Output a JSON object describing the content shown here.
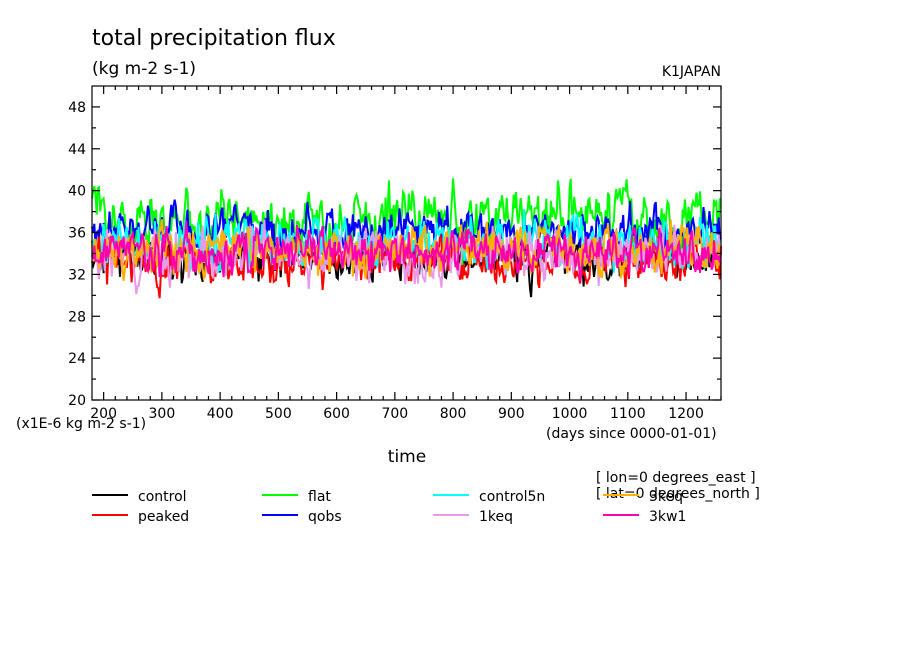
{
  "chart_data": {
    "type": "line",
    "title": "total precipitation flux",
    "subtitle": "(kg m-2 s-1)",
    "model_label": "K1JAPAN",
    "xlabel": "time",
    "x_units": "(days since 0000-01-01)",
    "y_scale_label": "(x1E-6 kg m-2 s-1)",
    "xlim": [
      180,
      1260
    ],
    "ylim": [
      20,
      50
    ],
    "x_ticks": [
      200,
      300,
      400,
      500,
      600,
      700,
      800,
      900,
      1000,
      1100,
      1200
    ],
    "y_ticks": [
      20,
      24,
      28,
      32,
      36,
      40,
      44,
      48
    ],
    "grid": false,
    "legend_placement": "below chart",
    "annotations": [
      "[ lon=0 degrees_east ]",
      "[ lat=0 degrees_north ]"
    ],
    "series": [
      {
        "name": "control",
        "color": "#000000",
        "mean": 33.6,
        "amp": 1.7,
        "seed": 11
      },
      {
        "name": "peaked",
        "color": "#ff0000",
        "mean": 33.3,
        "amp": 1.8,
        "seed": 23
      },
      {
        "name": "flat",
        "color": "#00ff00",
        "mean": 37.2,
        "amp": 2.3,
        "seed": 37
      },
      {
        "name": "qobs",
        "color": "#0000ff",
        "mean": 36.2,
        "amp": 1.6,
        "seed": 41
      },
      {
        "name": "control5n",
        "color": "#00ffff",
        "mean": 35.0,
        "amp": 1.9,
        "seed": 53
      },
      {
        "name": "1keq",
        "color": "#e89ae8",
        "mean": 33.9,
        "amp": 1.9,
        "seed": 67
      },
      {
        "name": "3keq",
        "color": "#ffb000",
        "mean": 34.3,
        "amp": 1.8,
        "seed": 79
      },
      {
        "name": "3kw1",
        "color": "#ff00b0",
        "mean": 34.2,
        "amp": 1.7,
        "seed": 89
      }
    ]
  }
}
